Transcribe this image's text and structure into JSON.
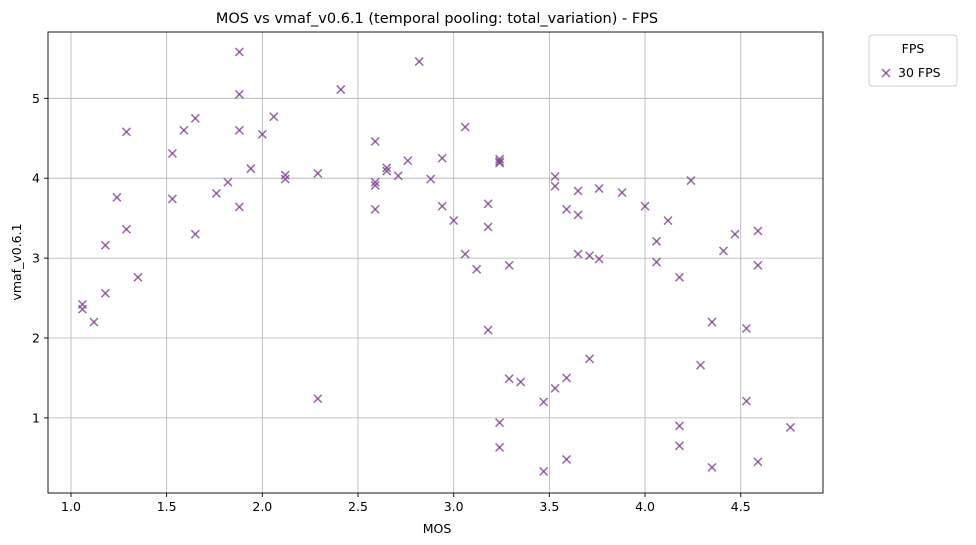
{
  "chart_data": {
    "type": "scatter",
    "title": "MOS vs vmaf_v0.6.1 (temporal pooling: total_variation) - FPS",
    "xlabel": "MOS",
    "ylabel": "vmaf_v0.6.1",
    "xlim": [
      0.88,
      4.93
    ],
    "ylim": [
      0.06,
      5.83
    ],
    "xticks": [
      1.0,
      1.5,
      2.0,
      2.5,
      3.0,
      3.5,
      4.0,
      4.5
    ],
    "xtick_labels": [
      "1.0",
      "1.5",
      "2.0",
      "2.5",
      "3.0",
      "3.5",
      "4.0",
      "4.5"
    ],
    "yticks": [
      1,
      2,
      3,
      4,
      5
    ],
    "ytick_labels": [
      "1",
      "2",
      "3",
      "4",
      "5"
    ],
    "grid": true,
    "marker": "x",
    "legend": {
      "title": "FPS",
      "placement": "outside-top-right",
      "entries": [
        "30 FPS"
      ]
    },
    "series": [
      {
        "name": "30 FPS",
        "color": "#7b3f8c",
        "points": [
          [
            1.06,
            2.42
          ],
          [
            1.06,
            2.36
          ],
          [
            1.12,
            2.2
          ],
          [
            1.18,
            2.56
          ],
          [
            1.18,
            3.16
          ],
          [
            1.24,
            3.76
          ],
          [
            1.29,
            3.36
          ],
          [
            1.29,
            4.58
          ],
          [
            1.35,
            2.76
          ],
          [
            1.53,
            4.31
          ],
          [
            1.53,
            3.74
          ],
          [
            1.59,
            4.6
          ],
          [
            1.65,
            4.75
          ],
          [
            1.65,
            3.3
          ],
          [
            1.76,
            3.81
          ],
          [
            1.82,
            3.95
          ],
          [
            1.88,
            5.58
          ],
          [
            1.88,
            5.05
          ],
          [
            1.88,
            4.6
          ],
          [
            1.88,
            3.64
          ],
          [
            1.94,
            4.12
          ],
          [
            2.0,
            4.55
          ],
          [
            2.06,
            4.77
          ],
          [
            2.12,
            4.04
          ],
          [
            2.12,
            3.99
          ],
          [
            2.29,
            4.06
          ],
          [
            2.29,
            1.24
          ],
          [
            2.41,
            5.11
          ],
          [
            2.59,
            4.46
          ],
          [
            2.59,
            3.95
          ],
          [
            2.59,
            3.91
          ],
          [
            2.59,
            3.61
          ],
          [
            2.65,
            4.13
          ],
          [
            2.65,
            4.09
          ],
          [
            2.71,
            4.03
          ],
          [
            2.76,
            4.22
          ],
          [
            2.82,
            5.46
          ],
          [
            2.88,
            3.99
          ],
          [
            2.94,
            4.25
          ],
          [
            2.94,
            3.65
          ],
          [
            3.0,
            3.47
          ],
          [
            3.06,
            4.64
          ],
          [
            3.06,
            3.05
          ],
          [
            3.12,
            2.86
          ],
          [
            3.18,
            3.68
          ],
          [
            3.18,
            3.39
          ],
          [
            3.18,
            2.1
          ],
          [
            3.24,
            4.24
          ],
          [
            3.24,
            4.21
          ],
          [
            3.24,
            4.19
          ],
          [
            3.24,
            0.94
          ],
          [
            3.24,
            0.63
          ],
          [
            3.29,
            2.91
          ],
          [
            3.29,
            1.49
          ],
          [
            3.35,
            1.45
          ],
          [
            3.47,
            1.2
          ],
          [
            3.47,
            0.33
          ],
          [
            3.53,
            4.02
          ],
          [
            3.53,
            3.9
          ],
          [
            3.53,
            1.37
          ],
          [
            3.59,
            3.61
          ],
          [
            3.59,
            1.5
          ],
          [
            3.59,
            0.48
          ],
          [
            3.65,
            3.84
          ],
          [
            3.65,
            3.54
          ],
          [
            3.65,
            3.05
          ],
          [
            3.71,
            3.03
          ],
          [
            3.71,
            1.74
          ],
          [
            3.76,
            3.87
          ],
          [
            3.76,
            2.99
          ],
          [
            3.88,
            3.82
          ],
          [
            4.0,
            3.65
          ],
          [
            4.06,
            3.21
          ],
          [
            4.06,
            2.95
          ],
          [
            4.12,
            3.47
          ],
          [
            4.18,
            2.76
          ],
          [
            4.18,
            0.9
          ],
          [
            4.18,
            0.65
          ],
          [
            4.24,
            3.97
          ],
          [
            4.29,
            1.66
          ],
          [
            4.35,
            2.2
          ],
          [
            4.35,
            0.38
          ],
          [
            4.41,
            3.09
          ],
          [
            4.47,
            3.3
          ],
          [
            4.53,
            2.12
          ],
          [
            4.53,
            1.21
          ],
          [
            4.59,
            3.34
          ],
          [
            4.59,
            2.91
          ],
          [
            4.59,
            0.45
          ],
          [
            4.76,
            0.88
          ]
        ]
      }
    ]
  }
}
